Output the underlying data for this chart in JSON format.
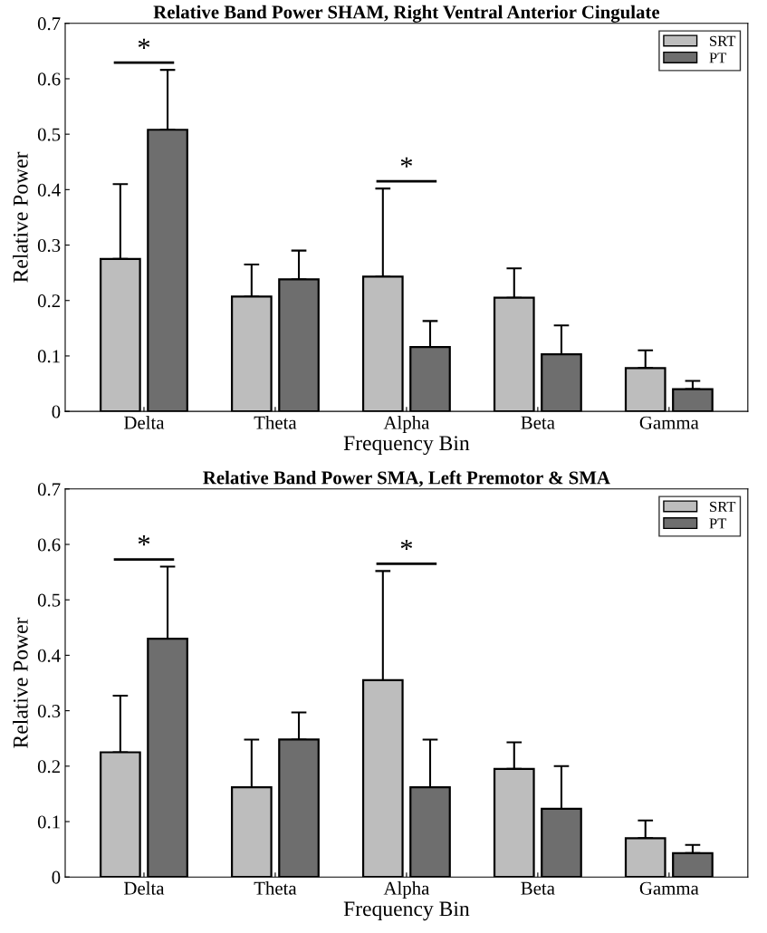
{
  "chart_data": [
    {
      "type": "bar",
      "title": "Relative Band Power SHAM, Right Ventral Anterior Cingulate",
      "xlabel": "Frequency Bin",
      "ylabel": "Relative Power",
      "categories": [
        "Delta",
        "Theta",
        "Alpha",
        "Beta",
        "Gamma"
      ],
      "series": [
        {
          "name": "SRT",
          "color": "#bdbdbd",
          "values": [
            0.275,
            0.207,
            0.243,
            0.205,
            0.078
          ],
          "errors": [
            [
              0.275,
              0.41
            ],
            [
              0.207,
              0.265
            ],
            [
              0.243,
              0.402
            ],
            [
              0.205,
              0.258
            ],
            [
              0.078,
              0.11
            ]
          ]
        },
        {
          "name": "PT",
          "color": "#6e6e6e",
          "values": [
            0.508,
            0.238,
            0.116,
            0.103,
            0.04
          ],
          "errors": [
            [
              0.508,
              0.616
            ],
            [
              0.238,
              0.29
            ],
            [
              0.116,
              0.163
            ],
            [
              0.103,
              0.155
            ],
            [
              0.04,
              0.055
            ]
          ]
        }
      ],
      "annotations": [
        "*",
        "*"
      ],
      "ylim": [
        0,
        0.7
      ],
      "yticks": [
        0,
        0.1,
        0.2,
        0.3,
        0.4,
        0.5,
        0.6,
        0.7
      ],
      "grid": false,
      "legend": "top right"
    },
    {
      "type": "bar",
      "title": "Relative Band Power SMA, Left Premotor & SMA",
      "xlabel": "Frequency Bin",
      "ylabel": "Relative Power",
      "categories": [
        "Delta",
        "Theta",
        "Alpha",
        "Beta",
        "Gamma"
      ],
      "series": [
        {
          "name": "SRT",
          "color": "#bdbdbd",
          "values": [
            0.225,
            0.162,
            0.355,
            0.195,
            0.07
          ],
          "errors": [
            [
              0.225,
              0.327
            ],
            [
              0.162,
              0.248
            ],
            [
              0.355,
              0.552
            ],
            [
              0.195,
              0.243
            ],
            [
              0.07,
              0.102
            ]
          ]
        },
        {
          "name": "PT",
          "color": "#6e6e6e",
          "values": [
            0.43,
            0.248,
            0.162,
            0.123,
            0.043
          ],
          "errors": [
            [
              0.43,
              0.56
            ],
            [
              0.248,
              0.297
            ],
            [
              0.162,
              0.248
            ],
            [
              0.123,
              0.2
            ],
            [
              0.043,
              0.058
            ]
          ]
        }
      ],
      "annotations": [
        "*",
        "*"
      ],
      "ylim": [
        0,
        0.7
      ],
      "yticks": [
        0,
        0.1,
        0.2,
        0.3,
        0.4,
        0.5,
        0.6,
        0.7
      ],
      "grid": false,
      "legend": "top right"
    }
  ]
}
